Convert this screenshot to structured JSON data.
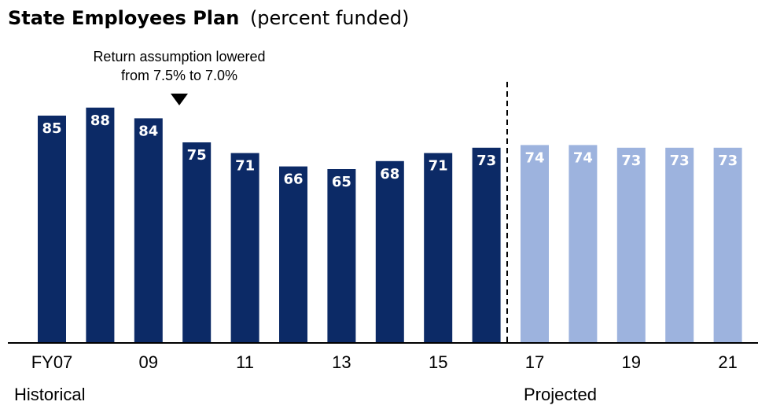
{
  "chart_data": {
    "type": "bar",
    "title": "State Employees Plan",
    "subtitle": "(percent funded)",
    "annotation": [
      "Return assumption lowered",
      "from 7.5% to 7.0%"
    ],
    "categories": [
      "FY07",
      null,
      "09",
      null,
      "11",
      null,
      "13",
      null,
      "15",
      null,
      "17",
      null,
      "19",
      null,
      "21"
    ],
    "series": [
      {
        "name": "Historical",
        "color": "#0c2a66",
        "values": [
          85,
          88,
          84,
          75,
          71,
          66,
          65,
          68,
          71,
          73,
          null,
          null,
          null,
          null,
          null
        ]
      },
      {
        "name": "Projected",
        "color": "#9db3de",
        "values": [
          null,
          null,
          null,
          null,
          null,
          null,
          null,
          null,
          null,
          null,
          74,
          74,
          73,
          73,
          73
        ]
      }
    ],
    "ylim": [
      0,
      100
    ]
  }
}
